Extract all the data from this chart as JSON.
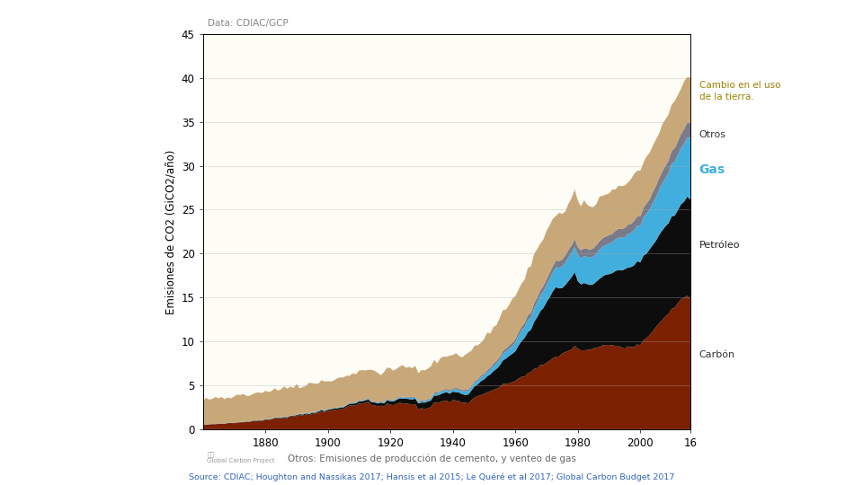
{
  "ylabel": "Emisiones de CO2 (GiCO2/año)",
  "data_label": "Data: CDIAC/GCP",
  "subtitle": "Otros: Emisiones de producción de cemento, y venteo de gas",
  "source_text": "Source: CDIAC; Houghton and Nassikas 2017; Hansis et al 2015; Le Quéré et al 2017; Global Carbon Budget 2017",
  "xlim": [
    1860,
    2016
  ],
  "ylim": [
    0,
    45
  ],
  "yticks": [
    0,
    5,
    10,
    15,
    20,
    25,
    30,
    35,
    40,
    45
  ],
  "xticks": [
    1880,
    1900,
    1920,
    1940,
    1960,
    1980,
    2000
  ],
  "background_color": "#faf9f0",
  "plot_bg_color": "#fdfcf5",
  "left_panel_color": "#2255aa",
  "layer_colors": {
    "carbon": "#7B2000",
    "petroleo": "#0d0d0d",
    "gas": "#42AEDE",
    "otros": "#7a7a8a",
    "cambio": "#C8A878"
  },
  "layer_label_colors": {
    "carbon": "#333333",
    "petroleo": "#222222",
    "gas": "#42AEDE",
    "otros": "#333333",
    "cambio": "#9B8000"
  }
}
